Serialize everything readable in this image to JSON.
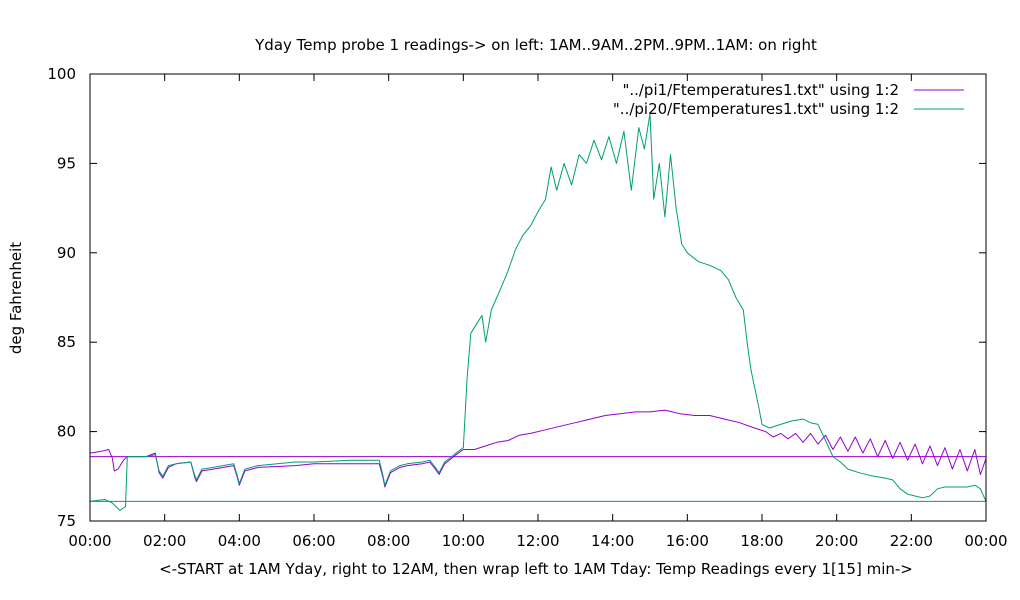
{
  "chart_data": {
    "type": "line",
    "title": "Yday Temp probe 1 readings-> on left: 1AM..9AM..2PM..9PM..1AM: on right",
    "xlabel": "<-START at 1AM Yday, right to 12AM, then wrap left to 1AM Tday: Temp Readings every 1[15] min->",
    "ylabel": "deg Fahrenheit",
    "ylim": [
      75,
      100
    ],
    "xlim": [
      0,
      24
    ],
    "x_tick_labels": [
      "00:00",
      "02:00",
      "04:00",
      "06:00",
      "08:00",
      "10:00",
      "12:00",
      "14:00",
      "16:00",
      "18:00",
      "20:00",
      "22:00",
      "00:00"
    ],
    "y_tick_labels": [
      "75",
      "80",
      "85",
      "90",
      "95",
      "100"
    ],
    "grid": false,
    "legend_position": "top-right",
    "series": [
      {
        "name": "\"../pi1/Ftemperatures1.txt\" using 1:2",
        "color": "#9400d3",
        "points": [
          [
            0,
            78.8
          ],
          [
            0.3,
            78.9
          ],
          [
            0.5,
            79.0
          ],
          [
            0.6,
            78.5
          ],
          [
            0.65,
            77.8
          ],
          [
            0.75,
            77.9
          ],
          [
            0.9,
            78.4
          ],
          [
            1.0,
            78.6
          ],
          [
            1.5,
            78.6
          ],
          [
            1.75,
            78.8
          ],
          [
            1.85,
            77.7
          ],
          [
            1.95,
            77.4
          ],
          [
            2.1,
            78.0
          ],
          [
            2.3,
            78.2
          ],
          [
            2.7,
            78.3
          ],
          [
            2.8,
            77.5
          ],
          [
            2.85,
            77.2
          ],
          [
            3.0,
            77.8
          ],
          [
            3.3,
            77.9
          ],
          [
            3.85,
            78.1
          ],
          [
            3.95,
            77.4
          ],
          [
            4.0,
            77.0
          ],
          [
            4.15,
            77.8
          ],
          [
            4.5,
            78.0
          ],
          [
            5.5,
            78.1
          ],
          [
            6.0,
            78.2
          ],
          [
            7.0,
            78.2
          ],
          [
            7.75,
            78.2
          ],
          [
            7.85,
            77.4
          ],
          [
            7.9,
            76.9
          ],
          [
            8.05,
            77.7
          ],
          [
            8.3,
            78.0
          ],
          [
            8.5,
            78.1
          ],
          [
            8.9,
            78.2
          ],
          [
            9.1,
            78.3
          ],
          [
            9.25,
            77.9
          ],
          [
            9.35,
            77.6
          ],
          [
            9.5,
            78.2
          ],
          [
            9.8,
            78.7
          ],
          [
            10.0,
            79.0
          ],
          [
            10.3,
            79.0
          ],
          [
            10.6,
            79.2
          ],
          [
            10.9,
            79.4
          ],
          [
            11.2,
            79.5
          ],
          [
            11.5,
            79.8
          ],
          [
            11.8,
            79.9
          ],
          [
            12.2,
            80.1
          ],
          [
            12.6,
            80.3
          ],
          [
            13.0,
            80.5
          ],
          [
            13.4,
            80.7
          ],
          [
            13.8,
            80.9
          ],
          [
            14.2,
            81.0
          ],
          [
            14.6,
            81.1
          ],
          [
            15.0,
            81.1
          ],
          [
            15.4,
            81.2
          ],
          [
            15.8,
            81.0
          ],
          [
            16.2,
            80.9
          ],
          [
            16.6,
            80.9
          ],
          [
            17.0,
            80.7
          ],
          [
            17.4,
            80.5
          ],
          [
            17.8,
            80.2
          ],
          [
            18.1,
            80.0
          ],
          [
            18.3,
            79.7
          ],
          [
            18.5,
            79.9
          ],
          [
            18.7,
            79.6
          ],
          [
            18.9,
            79.9
          ],
          [
            19.1,
            79.4
          ],
          [
            19.3,
            79.9
          ],
          [
            19.5,
            79.3
          ],
          [
            19.7,
            79.8
          ],
          [
            19.9,
            79.0
          ],
          [
            20.1,
            79.7
          ],
          [
            20.3,
            78.9
          ],
          [
            20.5,
            79.7
          ],
          [
            20.7,
            78.8
          ],
          [
            20.9,
            79.6
          ],
          [
            21.1,
            78.6
          ],
          [
            21.3,
            79.5
          ],
          [
            21.5,
            78.5
          ],
          [
            21.7,
            79.4
          ],
          [
            21.9,
            78.4
          ],
          [
            22.1,
            79.3
          ],
          [
            22.3,
            78.2
          ],
          [
            22.5,
            79.2
          ],
          [
            22.7,
            78.1
          ],
          [
            22.9,
            79.1
          ],
          [
            23.1,
            77.9
          ],
          [
            23.3,
            79.0
          ],
          [
            23.5,
            77.8
          ],
          [
            23.7,
            79.0
          ],
          [
            23.85,
            77.6
          ],
          [
            24.0,
            78.5
          ]
        ],
        "flat_line": 78.6
      },
      {
        "name": "\"../pi20/Ftemperatures1.txt\" using 1:2",
        "color": "#009e73",
        "points": [
          [
            0,
            76.1
          ],
          [
            0.4,
            76.2
          ],
          [
            0.6,
            76.0
          ],
          [
            0.8,
            75.6
          ],
          [
            0.95,
            75.8
          ],
          [
            1.0,
            78.6
          ],
          [
            1.5,
            78.6
          ],
          [
            1.75,
            78.7
          ],
          [
            1.85,
            77.8
          ],
          [
            1.95,
            77.5
          ],
          [
            2.1,
            78.1
          ],
          [
            2.3,
            78.2
          ],
          [
            2.7,
            78.3
          ],
          [
            2.8,
            77.6
          ],
          [
            2.85,
            77.3
          ],
          [
            3.0,
            77.9
          ],
          [
            3.3,
            78.0
          ],
          [
            3.85,
            78.2
          ],
          [
            3.95,
            77.5
          ],
          [
            4.0,
            77.1
          ],
          [
            4.15,
            77.9
          ],
          [
            4.5,
            78.1
          ],
          [
            5.5,
            78.3
          ],
          [
            6.0,
            78.3
          ],
          [
            7.0,
            78.4
          ],
          [
            7.75,
            78.4
          ],
          [
            7.85,
            77.5
          ],
          [
            7.9,
            77.0
          ],
          [
            8.05,
            77.8
          ],
          [
            8.3,
            78.1
          ],
          [
            8.5,
            78.2
          ],
          [
            8.9,
            78.3
          ],
          [
            9.1,
            78.4
          ],
          [
            9.25,
            78.0
          ],
          [
            9.35,
            77.7
          ],
          [
            9.5,
            78.3
          ],
          [
            9.8,
            78.8
          ],
          [
            10.0,
            79.1
          ],
          [
            10.05,
            81.0
          ],
          [
            10.1,
            83.0
          ],
          [
            10.2,
            85.5
          ],
          [
            10.35,
            86.0
          ],
          [
            10.5,
            86.5
          ],
          [
            10.6,
            85.0
          ],
          [
            10.75,
            86.8
          ],
          [
            11.0,
            88.0
          ],
          [
            11.2,
            89.0
          ],
          [
            11.4,
            90.2
          ],
          [
            11.6,
            91.0
          ],
          [
            11.8,
            91.5
          ],
          [
            12.0,
            92.3
          ],
          [
            12.2,
            93.0
          ],
          [
            12.35,
            94.8
          ],
          [
            12.5,
            93.5
          ],
          [
            12.7,
            95.0
          ],
          [
            12.9,
            93.8
          ],
          [
            13.1,
            95.5
          ],
          [
            13.3,
            95.0
          ],
          [
            13.5,
            96.3
          ],
          [
            13.7,
            95.2
          ],
          [
            13.9,
            96.5
          ],
          [
            14.1,
            95.0
          ],
          [
            14.3,
            96.8
          ],
          [
            14.5,
            93.5
          ],
          [
            14.7,
            97.0
          ],
          [
            14.85,
            95.8
          ],
          [
            15.0,
            97.8
          ],
          [
            15.1,
            93.0
          ],
          [
            15.25,
            95.0
          ],
          [
            15.4,
            92.0
          ],
          [
            15.55,
            95.5
          ],
          [
            15.7,
            92.5
          ],
          [
            15.85,
            90.5
          ],
          [
            16.0,
            90.0
          ],
          [
            16.3,
            89.5
          ],
          [
            16.6,
            89.3
          ],
          [
            16.9,
            89.0
          ],
          [
            17.1,
            88.5
          ],
          [
            17.3,
            87.5
          ],
          [
            17.5,
            86.8
          ],
          [
            17.6,
            85.0
          ],
          [
            17.7,
            83.5
          ],
          [
            17.8,
            82.5
          ],
          [
            17.9,
            81.5
          ],
          [
            18.0,
            80.4
          ],
          [
            18.2,
            80.2
          ],
          [
            18.5,
            80.4
          ],
          [
            18.8,
            80.6
          ],
          [
            19.1,
            80.7
          ],
          [
            19.3,
            80.5
          ],
          [
            19.5,
            80.4
          ],
          [
            19.7,
            79.5
          ],
          [
            19.9,
            78.6
          ],
          [
            20.1,
            78.3
          ],
          [
            20.3,
            77.9
          ],
          [
            20.6,
            77.7
          ],
          [
            21.0,
            77.5
          ],
          [
            21.3,
            77.4
          ],
          [
            21.5,
            77.3
          ],
          [
            21.7,
            76.8
          ],
          [
            21.9,
            76.5
          ],
          [
            22.1,
            76.4
          ],
          [
            22.3,
            76.3
          ],
          [
            22.5,
            76.4
          ],
          [
            22.7,
            76.8
          ],
          [
            22.9,
            76.9
          ],
          [
            23.2,
            76.9
          ],
          [
            23.5,
            76.9
          ],
          [
            23.7,
            77.0
          ],
          [
            23.85,
            76.8
          ],
          [
            24.0,
            76.1
          ]
        ],
        "flat_line": 76.1
      }
    ]
  }
}
